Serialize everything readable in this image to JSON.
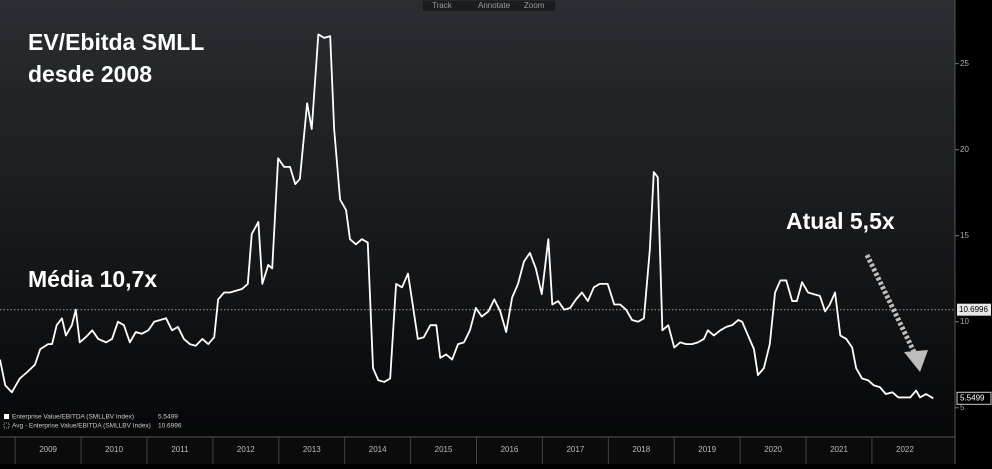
{
  "toolbar": {
    "buttons": [
      "Track",
      "Annotate",
      "Zoom"
    ]
  },
  "chart_data": {
    "type": "line",
    "title": [
      "EV/Ebitda SMLL",
      "desde 2008"
    ],
    "annotations": [
      "Média 10,7x",
      "Atual 5,5x"
    ],
    "x": [
      2008.77,
      2008.85,
      2008.95,
      2009.07,
      2009.19,
      2009.3,
      2009.38,
      2009.5,
      2009.56,
      2009.63,
      2009.71,
      2009.77,
      2009.86,
      2009.92,
      2009.98,
      2010.07,
      2010.17,
      2010.26,
      2010.38,
      2010.47,
      2010.56,
      2010.65,
      2010.74,
      2010.83,
      2010.92,
      2011.02,
      2011.11,
      2011.2,
      2011.29,
      2011.38,
      2011.47,
      2011.56,
      2011.65,
      2011.74,
      2011.84,
      2011.93,
      2012.02,
      2012.08,
      2012.17,
      2012.26,
      2012.35,
      2012.44,
      2012.53,
      2012.59,
      2012.69,
      2012.75,
      2012.84,
      2012.9,
      2012.99,
      2013.08,
      2013.17,
      2013.25,
      2013.32,
      2013.43,
      2013.5,
      2013.6,
      2013.69,
      2013.78,
      2013.84,
      2013.93,
      2014.02,
      2014.08,
      2014.17,
      2014.26,
      2014.35,
      2014.43,
      2014.51,
      2014.6,
      2014.69,
      2014.78,
      2014.87,
      2014.96,
      2015.02,
      2015.11,
      2015.2,
      2015.3,
      2015.39,
      2015.45,
      2015.54,
      2015.63,
      2015.72,
      2015.81,
      2015.9,
      2015.99,
      2016.08,
      2016.18,
      2016.27,
      2016.36,
      2016.45,
      2016.54,
      2016.63,
      2016.72,
      2016.81,
      2016.9,
      2016.99,
      2017.09,
      2017.15,
      2017.24,
      2017.33,
      2017.42,
      2017.51,
      2017.6,
      2017.69,
      2017.78,
      2017.87,
      2017.99,
      2018.09,
      2018.18,
      2018.27,
      2018.36,
      2018.45,
      2018.54,
      2018.63,
      2018.69,
      2018.75,
      2018.82,
      2018.91,
      2019.0,
      2019.09,
      2019.18,
      2019.27,
      2019.36,
      2019.45,
      2019.51,
      2019.6,
      2019.7,
      2019.79,
      2019.88,
      2019.97,
      2020.03,
      2020.12,
      2020.21,
      2020.27,
      2020.36,
      2020.45,
      2020.53,
      2020.61,
      2020.7,
      2020.79,
      2020.86,
      2020.94,
      2021.03,
      2021.12,
      2021.21,
      2021.29,
      2021.36,
      2021.44,
      2021.52,
      2021.61,
      2021.7,
      2021.76,
      2021.85,
      2021.94,
      2022.03,
      2022.12,
      2022.21,
      2022.31,
      2022.4,
      2022.49,
      2022.58,
      2022.67,
      2022.73,
      2022.82,
      2022.93
    ],
    "series": [
      {
        "name": "Enterprise Value/EBITDA (SMLLBV Index)",
        "color": "#ffffff",
        "values": [
          7.8,
          6.3,
          5.9,
          6.7,
          7.1,
          7.5,
          8.4,
          8.7,
          8.7,
          9.8,
          10.2,
          9.2,
          9.8,
          10.7,
          8.8,
          9.1,
          9.5,
          9.0,
          8.8,
          9.0,
          10.0,
          9.8,
          8.8,
          9.4,
          9.3,
          9.5,
          10.0,
          10.1,
          10.2,
          9.5,
          9.7,
          9.0,
          8.7,
          8.6,
          9.0,
          8.7,
          9.1,
          11.3,
          11.7,
          11.7,
          11.8,
          11.9,
          12.2,
          15.1,
          15.8,
          12.2,
          13.3,
          13.1,
          19.5,
          19.0,
          19.0,
          18.0,
          18.3,
          22.7,
          21.2,
          26.7,
          26.5,
          26.6,
          21.2,
          17.1,
          16.5,
          14.8,
          14.5,
          14.8,
          14.6,
          7.3,
          6.6,
          6.5,
          6.7,
          12.2,
          12.0,
          12.8,
          11.3,
          9.0,
          9.1,
          9.8,
          9.8,
          7.9,
          8.1,
          7.8,
          8.7,
          8.8,
          9.5,
          10.8,
          10.3,
          10.6,
          11.3,
          10.6,
          9.4,
          11.4,
          12.2,
          13.5,
          14.0,
          13.1,
          11.6,
          14.8,
          11.0,
          11.2,
          10.7,
          10.8,
          11.3,
          11.7,
          11.2,
          12.0,
          12.2,
          12.2,
          11.0,
          11.0,
          10.7,
          10.1,
          10.0,
          10.2,
          14.2,
          18.7,
          18.4,
          9.5,
          9.8,
          8.5,
          8.8,
          8.7,
          8.7,
          8.8,
          9.0,
          9.5,
          9.2,
          9.5,
          9.7,
          9.8,
          10.1,
          10.0,
          9.2,
          8.4,
          6.9,
          7.3,
          8.7,
          11.7,
          12.4,
          12.4,
          11.2,
          11.2,
          12.3,
          11.7,
          11.6,
          11.5,
          10.6,
          11.0,
          11.7,
          9.2,
          9.0,
          8.5,
          7.3,
          6.7,
          6.6,
          6.3,
          6.2,
          5.8,
          5.9,
          5.6,
          5.6,
          5.6,
          6.0,
          5.6,
          5.8,
          5.5499
        ]
      }
    ],
    "reference_line": {
      "name": "Avg - Enterprise Value/EBITDA (SMLLBV Index)",
      "value": 10.6996,
      "color": "#9a9a9a"
    },
    "xlim": [
      2008.77,
      2023.26
    ],
    "xticks": [
      2009,
      2010,
      2011,
      2012,
      2013,
      2014,
      2015,
      2016,
      2017,
      2018,
      2019,
      2020,
      2021,
      2022
    ],
    "ylim": [
      3.3,
      28.7
    ],
    "yticks": [
      5,
      10,
      15,
      20,
      25
    ]
  }
}
